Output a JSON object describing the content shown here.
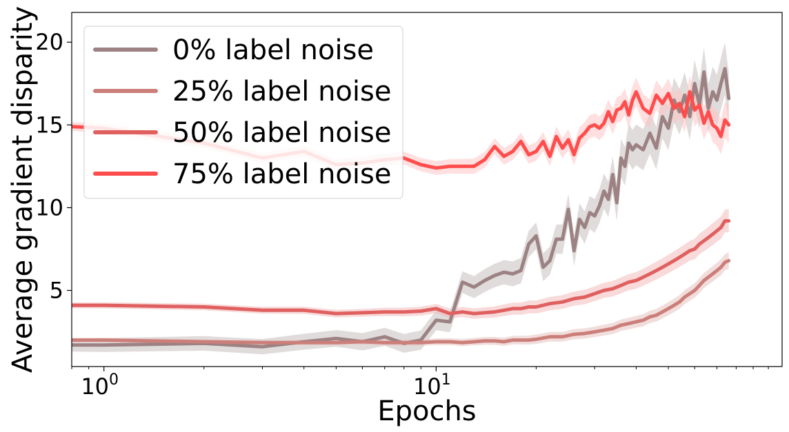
{
  "chart_data": {
    "type": "line",
    "title": "",
    "xlabel": "Epochs",
    "ylabel": "Average gradient disparity",
    "xscale": "log",
    "xlim": [
      0.8,
      110
    ],
    "ylim": [
      0.4,
      21.8
    ],
    "x_ticks": [
      {
        "value": 1,
        "base": "10",
        "exp": "0"
      },
      {
        "value": 10,
        "base": "10",
        "exp": "1"
      }
    ],
    "y_ticks": [
      {
        "value": 5,
        "label": "5"
      },
      {
        "value": 10,
        "label": "10"
      },
      {
        "value": 15,
        "label": "15"
      },
      {
        "value": 20,
        "label": "20"
      }
    ],
    "grid": false,
    "legend_position": "top-left",
    "series": [
      {
        "name": "0% label noise",
        "color": "#9c8282",
        "band_color": "#c9bfbf",
        "x": [
          0.8,
          1,
          2,
          3,
          4,
          5,
          6,
          7,
          8,
          9,
          10,
          11,
          12,
          13,
          14,
          15,
          16,
          17,
          18,
          19,
          20,
          21,
          22,
          23,
          24,
          25,
          26,
          27,
          28,
          29,
          30,
          31,
          32,
          33,
          34,
          35,
          36,
          37,
          38,
          39,
          40,
          42,
          44,
          46,
          48,
          50,
          52,
          54,
          56,
          58,
          60,
          62,
          64,
          66,
          68,
          70,
          72,
          74,
          76
        ],
        "y": [
          1.7,
          1.7,
          1.8,
          1.6,
          1.9,
          2.1,
          1.9,
          2.2,
          1.8,
          2.0,
          3.2,
          3.1,
          5.5,
          5.2,
          5.6,
          5.9,
          6.1,
          6.0,
          6.2,
          7.8,
          8.3,
          6.4,
          6.8,
          8.1,
          8.1,
          9.9,
          7.4,
          9.3,
          8.8,
          9.7,
          9.5,
          10.1,
          11.0,
          10.5,
          12.0,
          10.3,
          13.0,
          12.5,
          13.9,
          13.5,
          13.8,
          13.5,
          14.5,
          13.6,
          15.5,
          14.8,
          16.5,
          15.8,
          16.8,
          15.5,
          17.5,
          16.2,
          18.2,
          16.0,
          17.0,
          16.5,
          17.5,
          18.4,
          16.6
        ],
        "spread": 0.8
      },
      {
        "name": "25% label noise",
        "color": "#cc7f7a",
        "band_color": "#e6c2bf",
        "x": [
          0.8,
          1,
          2,
          3,
          4,
          5,
          6,
          7,
          8,
          9,
          10,
          11,
          12,
          13,
          14,
          15,
          16,
          17,
          18,
          19,
          20,
          22,
          24,
          26,
          28,
          30,
          32,
          34,
          36,
          38,
          40,
          42,
          44,
          46,
          48,
          50,
          52,
          54,
          56,
          58,
          60,
          62,
          64,
          66,
          68,
          70,
          72,
          74,
          76
        ],
        "y": [
          2.0,
          2.0,
          1.9,
          1.85,
          1.85,
          1.85,
          1.9,
          1.85,
          1.85,
          1.85,
          1.9,
          1.9,
          1.85,
          1.9,
          1.95,
          1.95,
          1.9,
          2.0,
          2.0,
          2.0,
          2.05,
          2.2,
          2.2,
          2.35,
          2.4,
          2.5,
          2.6,
          2.7,
          2.9,
          3.0,
          3.1,
          3.2,
          3.4,
          3.5,
          3.7,
          3.9,
          4.1,
          4.3,
          4.6,
          4.8,
          5.0,
          5.3,
          5.6,
          5.8,
          6.0,
          6.2,
          6.4,
          6.7,
          6.8
        ],
        "spread": 0.25
      },
      {
        "name": "50% label noise",
        "color": "#e06060",
        "band_color": "#f3bcbc",
        "x": [
          0.8,
          1,
          2,
          3,
          4,
          5,
          6,
          7,
          8,
          9,
          10,
          11,
          12,
          13,
          14,
          15,
          16,
          17,
          18,
          19,
          20,
          22,
          24,
          26,
          28,
          30,
          32,
          34,
          36,
          38,
          40,
          42,
          44,
          46,
          48,
          50,
          52,
          54,
          56,
          58,
          60,
          62,
          64,
          66,
          68,
          70,
          72,
          74,
          76
        ],
        "y": [
          4.1,
          4.1,
          4.0,
          3.8,
          3.8,
          3.6,
          3.65,
          3.7,
          3.7,
          3.75,
          3.9,
          3.6,
          3.7,
          3.6,
          3.65,
          3.7,
          3.8,
          3.9,
          3.9,
          4.0,
          4.0,
          4.2,
          4.3,
          4.5,
          4.6,
          4.8,
          5.0,
          5.1,
          5.3,
          5.5,
          5.6,
          5.8,
          6.0,
          6.2,
          6.4,
          6.6,
          6.8,
          7.0,
          7.2,
          7.4,
          7.5,
          7.8,
          8.0,
          8.2,
          8.4,
          8.6,
          8.8,
          9.2,
          9.2
        ],
        "spread": 0.35
      },
      {
        "name": "75% label noise",
        "color": "#ff4d4d",
        "band_color": "#ffc4c4",
        "x": [
          0.8,
          1,
          2,
          3,
          4,
          5,
          6,
          7,
          8,
          9,
          10,
          11,
          12,
          13,
          14,
          15,
          16,
          17,
          18,
          19,
          20,
          21,
          22,
          23,
          24,
          25,
          26,
          27,
          28,
          29,
          30,
          31,
          32,
          33,
          34,
          35,
          36,
          37,
          38,
          39,
          40,
          42,
          44,
          46,
          48,
          50,
          52,
          54,
          56,
          58,
          60,
          62,
          64,
          66,
          68,
          70,
          72,
          74,
          76
        ],
        "y": [
          14.9,
          14.8,
          13.9,
          13.0,
          13.4,
          12.6,
          12.7,
          12.9,
          13.0,
          12.6,
          12.4,
          12.5,
          12.5,
          12.5,
          12.9,
          13.7,
          13.1,
          13.4,
          14.0,
          13.2,
          13.4,
          14.0,
          13.1,
          14.3,
          13.6,
          14.1,
          13.2,
          14.2,
          14.5,
          14.9,
          15.0,
          14.8,
          15.1,
          15.8,
          15.2,
          15.9,
          16.0,
          16.4,
          15.6,
          16.5,
          17.0,
          16.0,
          15.7,
          16.8,
          16.3,
          16.9,
          16.0,
          16.3,
          15.5,
          17.0,
          15.9,
          16.2,
          15.1,
          15.8,
          15.0,
          14.8,
          14.3,
          15.3,
          15.0
        ],
        "spread": 0.55
      }
    ]
  }
}
